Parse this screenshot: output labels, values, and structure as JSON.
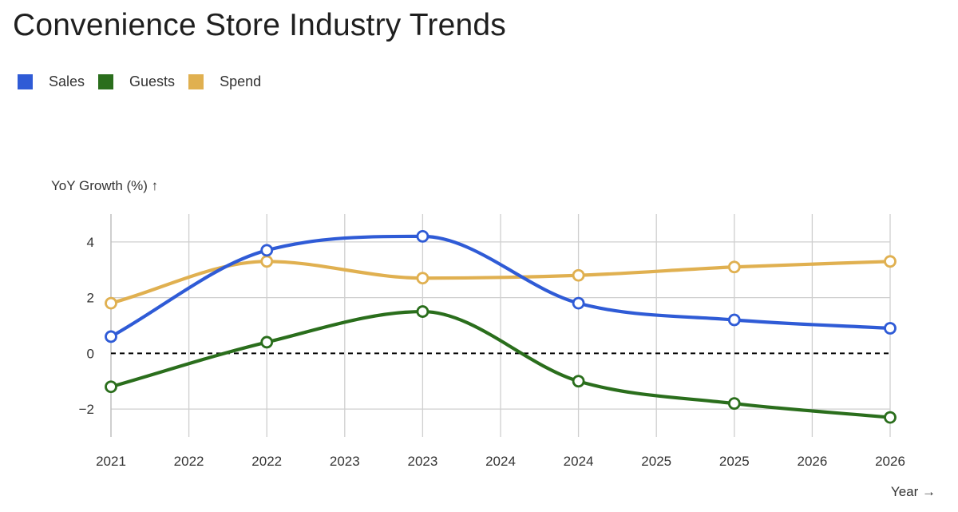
{
  "chart_data": {
    "type": "line",
    "title": "Convenience Store Industry Trends",
    "ylabel": "YoY Growth (%) ↑",
    "xlabel": "Year →",
    "x_ticks": [
      "2021",
      "2022",
      "2022",
      "2023",
      "2023",
      "2024",
      "2024",
      "2025",
      "2025",
      "2026",
      "2026"
    ],
    "x": [
      2021,
      2022,
      2023,
      2024,
      2025,
      2026
    ],
    "xlim": [
      2021,
      2026
    ],
    "ylim": [
      -3,
      5
    ],
    "y_ticks": [
      4,
      2,
      0,
      -2
    ],
    "grid": true,
    "legend_position": "top-left",
    "reference_line": {
      "y": 0,
      "style": "dashed",
      "color": "#000000"
    },
    "series": [
      {
        "name": "Sales",
        "color": "#2f5bd6",
        "values": [
          0.6,
          3.7,
          4.2,
          1.8,
          1.2,
          0.9
        ]
      },
      {
        "name": "Guests",
        "color": "#2a6e1c",
        "values": [
          -1.2,
          0.4,
          1.5,
          -1.0,
          -1.8,
          -2.3
        ]
      },
      {
        "name": "Spend",
        "color": "#e0b050",
        "values": [
          1.8,
          3.3,
          2.7,
          2.8,
          3.1,
          3.3
        ]
      }
    ]
  }
}
